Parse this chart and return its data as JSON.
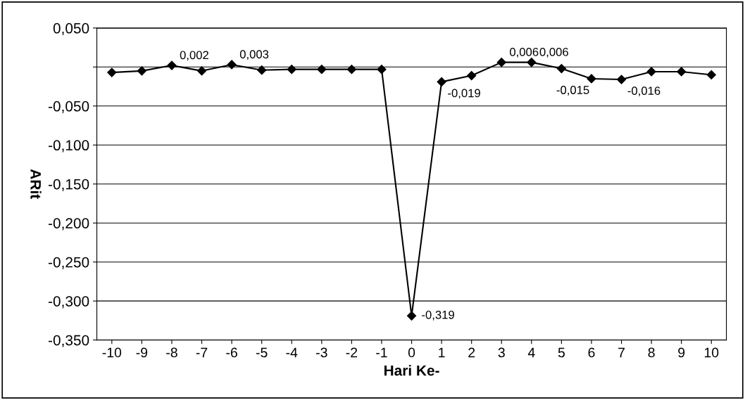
{
  "chart_data": {
    "type": "line",
    "xlabel": "Hari Ke-",
    "ylabel": "ARit",
    "categories": [
      "-10",
      "-9",
      "-8",
      "-7",
      "-6",
      "-5",
      "-4",
      "-3",
      "-2",
      "-1",
      "0",
      "1",
      "2",
      "3",
      "4",
      "5",
      "6",
      "7",
      "8",
      "9",
      "10"
    ],
    "series": [
      {
        "color": "#000000",
        "values": [
          -0.007,
          -0.005,
          0.002,
          -0.005,
          0.003,
          -0.004,
          -0.003,
          -0.003,
          -0.003,
          -0.003,
          -0.319,
          -0.019,
          -0.011,
          0.006,
          0.006,
          -0.002,
          -0.015,
          -0.016,
          -0.006,
          -0.006,
          -0.01
        ],
        "value_labels": [
          null,
          null,
          "0,002",
          null,
          "0,003",
          null,
          null,
          null,
          null,
          null,
          "-0,319",
          "-0,019",
          null,
          "0,006",
          "0,006",
          null,
          "-0,015",
          "-0,016",
          null,
          null,
          null
        ]
      }
    ],
    "ylim": [
      -0.35,
      0.05
    ],
    "yticks": [
      {
        "value": 0.05,
        "label": "0,050"
      },
      {
        "value": 0,
        "label": null
      },
      {
        "value": -0.05,
        "label": "-0,050"
      },
      {
        "value": -0.1,
        "label": "-0,100"
      },
      {
        "value": -0.15,
        "label": "-0,150"
      },
      {
        "value": -0.2,
        "label": "-0,200"
      },
      {
        "value": -0.25,
        "label": "-0,250"
      },
      {
        "value": -0.3,
        "label": "-0,300"
      },
      {
        "value": -0.35,
        "label": "-0,350"
      }
    ],
    "grid": "y",
    "marker": "diamond",
    "line_style": "solid"
  }
}
